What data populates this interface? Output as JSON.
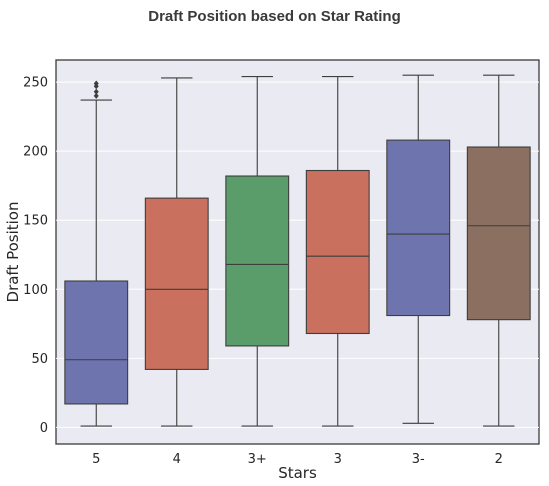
{
  "chart_data": {
    "type": "box",
    "title": "Draft Position based on Star Rating",
    "xlabel": "Stars",
    "ylabel": "Draft Position",
    "ylim": [
      -12,
      266
    ],
    "yticks": [
      0,
      50,
      100,
      150,
      200,
      250
    ],
    "grid": true,
    "legend": "none",
    "categories": [
      "5",
      "4",
      "3+",
      "3",
      "3-",
      "2"
    ],
    "boxes": [
      {
        "category": "5",
        "min": 1,
        "q1": 17,
        "median": 49,
        "q3": 106,
        "max": 237,
        "outliers": [
          240,
          243,
          247,
          249
        ],
        "color": "#6e74ad"
      },
      {
        "category": "4",
        "min": 1,
        "q1": 42,
        "median": 100,
        "q3": 166,
        "max": 253,
        "outliers": [],
        "color": "#c9705e"
      },
      {
        "category": "3+",
        "min": 1,
        "q1": 59,
        "median": 118,
        "q3": 182,
        "max": 254,
        "outliers": [],
        "color": "#5a9d6b"
      },
      {
        "category": "3",
        "min": 1,
        "q1": 68,
        "median": 124,
        "q3": 186,
        "max": 254,
        "outliers": [],
        "color": "#c9705e"
      },
      {
        "category": "3-",
        "min": 3,
        "q1": 81,
        "median": 140,
        "q3": 208,
        "max": 255,
        "outliers": [],
        "color": "#6e74ad"
      },
      {
        "category": "2",
        "min": 1,
        "q1": 78,
        "median": 146,
        "q3": 203,
        "max": 255,
        "outliers": [],
        "color": "#8b6f61"
      }
    ]
  }
}
